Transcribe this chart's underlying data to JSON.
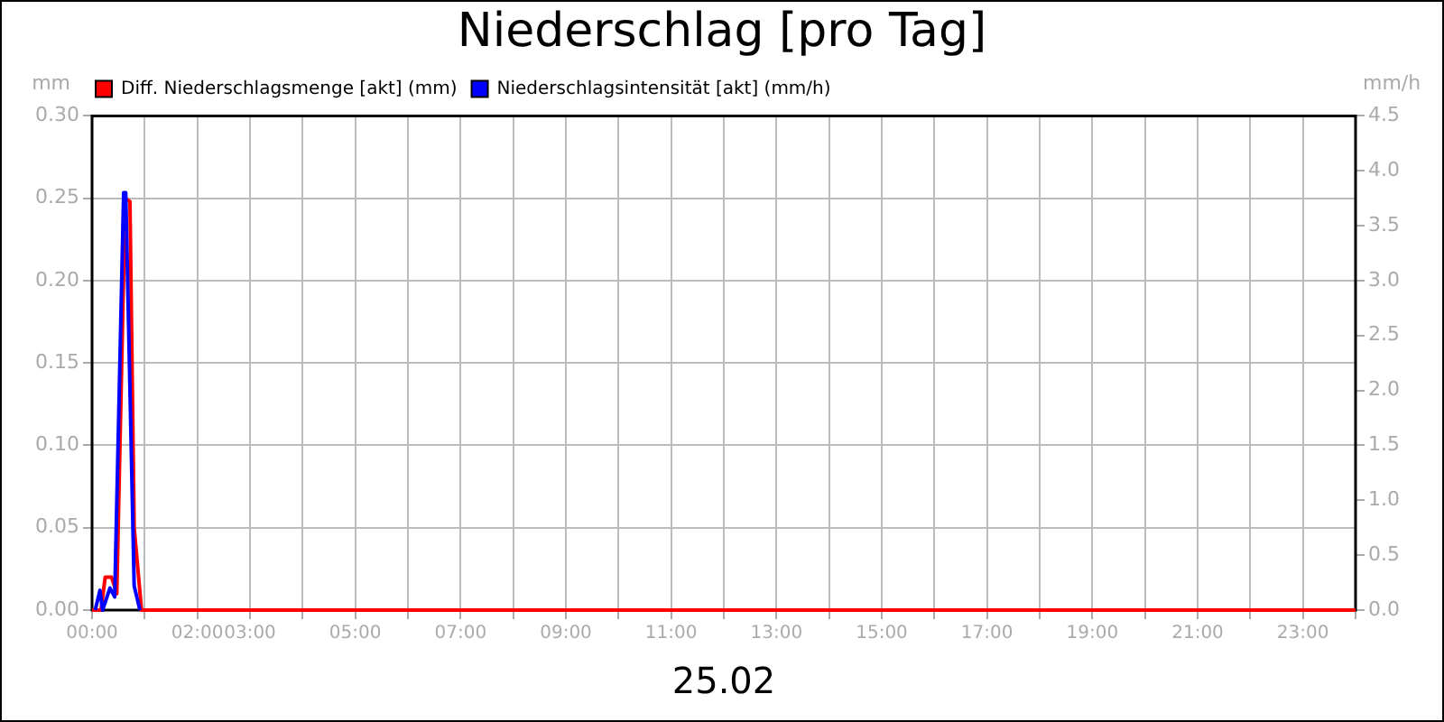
{
  "chart_data": {
    "type": "line",
    "title": "Niederschlag [pro Tag]",
    "xlabel": "25.02",
    "ylabel": "mm",
    "y2label": "mm/h",
    "legend": "top left",
    "grid": true,
    "marker": "none",
    "line_style": "solid",
    "xlim": [
      0,
      24
    ],
    "xticks": [
      {
        "value": 0,
        "label": "00:00"
      },
      {
        "value": 1,
        "label": null
      },
      {
        "value": 2,
        "label": "02:00"
      },
      {
        "value": 3,
        "label": "03:00"
      },
      {
        "value": 4,
        "label": null
      },
      {
        "value": 5,
        "label": "05:00"
      },
      {
        "value": 6,
        "label": null
      },
      {
        "value": 7,
        "label": "07:00"
      },
      {
        "value": 8,
        "label": null
      },
      {
        "value": 9,
        "label": "09:00"
      },
      {
        "value": 10,
        "label": null
      },
      {
        "value": 11,
        "label": "11:00"
      },
      {
        "value": 12,
        "label": null
      },
      {
        "value": 13,
        "label": "13:00"
      },
      {
        "value": 14,
        "label": null
      },
      {
        "value": 15,
        "label": "15:00"
      },
      {
        "value": 16,
        "label": null
      },
      {
        "value": 17,
        "label": "17:00"
      },
      {
        "value": 18,
        "label": null
      },
      {
        "value": 19,
        "label": "19:00"
      },
      {
        "value": 20,
        "label": null
      },
      {
        "value": 21,
        "label": "21:00"
      },
      {
        "value": 22,
        "label": null
      },
      {
        "value": 23,
        "label": "23:00"
      },
      {
        "value": 24,
        "label": null
      }
    ],
    "ylim": [
      0,
      0.3
    ],
    "yticks": [
      {
        "value": 0,
        "label": "0.00"
      },
      {
        "value": 0.05,
        "label": "0.05"
      },
      {
        "value": 0.1,
        "label": "0.10"
      },
      {
        "value": 0.15,
        "label": "0.15"
      },
      {
        "value": 0.2,
        "label": "0.20"
      },
      {
        "value": 0.25,
        "label": "0.25"
      },
      {
        "value": 0.3,
        "label": "0.30"
      }
    ],
    "y2lim": [
      0,
      4.5
    ],
    "y2ticks": [
      {
        "value": 0,
        "label": "0.0"
      },
      {
        "value": 0.5,
        "label": "0.5"
      },
      {
        "value": 1,
        "label": "1.0"
      },
      {
        "value": 1.5,
        "label": "1.5"
      },
      {
        "value": 2,
        "label": "2.0"
      },
      {
        "value": 2.5,
        "label": "2.5"
      },
      {
        "value": 3,
        "label": "3.0"
      },
      {
        "value": 3.5,
        "label": "3.5"
      },
      {
        "value": 4,
        "label": "4.0"
      },
      {
        "value": 4.5,
        "label": "4.5"
      }
    ],
    "series": [
      {
        "name": "Diff. Niederschlagsmenge [akt] (mm)",
        "color": "#ff0000",
        "x": [
          0,
          0.17,
          0.25,
          0.37,
          0.47,
          0.63,
          0.72,
          0.8,
          0.94,
          24
        ],
        "values": [
          0,
          0,
          0.02,
          0.02,
          0.01,
          0.25,
          0.248,
          0.05,
          0,
          0
        ]
      },
      {
        "name": "Niederschlagsintensität [akt] (mm/h)",
        "color": "#0000ff",
        "axis": "y2",
        "x": [
          0.06,
          0.15,
          0.2,
          0.34,
          0.43,
          0.6,
          0.64,
          0.8,
          0.91
        ],
        "values": [
          0,
          0.18,
          0,
          0.2,
          0.12,
          3.8,
          3.8,
          0.22,
          0
        ]
      }
    ]
  }
}
